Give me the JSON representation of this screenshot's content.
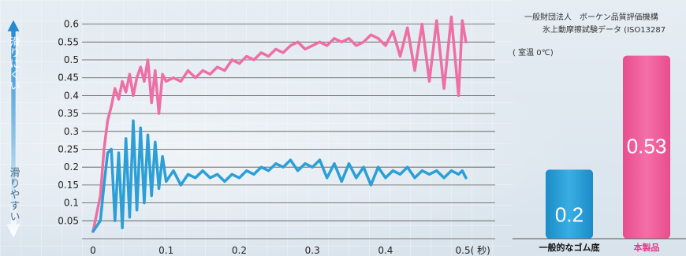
{
  "colors": {
    "pink": "#ee6fa6",
    "blue": "#2b9fd6",
    "arrow": "#2f8fd4",
    "bar_blue": "#2b9fd6",
    "bar_pink": "#ef5f9b",
    "cat_pink_text": "#e8388a"
  },
  "arrow": {
    "top_label": "滑りにくい",
    "bottom_label": "滑りやすい"
  },
  "note": {
    "line1": "一般財団法人　ボーケン品質評価機構",
    "line2": "氷上動摩擦試験データ (ISO13287",
    "condition": "( 室温 0℃)"
  },
  "chart_data": [
    {
      "type": "line",
      "x_unit_label": "0.5( 秒)",
      "x_ticks": [
        "0",
        "0.1",
        "0.2",
        "0.3",
        "0.4",
        "0.5( 秒)"
      ],
      "y_ticks": [
        "0.05",
        "0.1",
        "0.15",
        "0.2",
        "0.25",
        "0.3",
        "0.35",
        "0.4",
        "0.45",
        "0.5",
        "0.55",
        "0.6"
      ],
      "xlim": [
        0,
        0.55
      ],
      "ylim": [
        0,
        0.63
      ],
      "grid": "horizontal",
      "series": [
        {
          "color": "#ee6fa6",
          "x": [
            0,
            0.01,
            0.015,
            0.02,
            0.025,
            0.03,
            0.035,
            0.04,
            0.045,
            0.05,
            0.055,
            0.06,
            0.065,
            0.07,
            0.075,
            0.08,
            0.085,
            0.09,
            0.095,
            0.1,
            0.11,
            0.12,
            0.13,
            0.14,
            0.15,
            0.16,
            0.17,
            0.18,
            0.19,
            0.2,
            0.21,
            0.22,
            0.23,
            0.24,
            0.25,
            0.26,
            0.27,
            0.28,
            0.29,
            0.3,
            0.31,
            0.32,
            0.33,
            0.34,
            0.35,
            0.36,
            0.37,
            0.38,
            0.39,
            0.4,
            0.41,
            0.42,
            0.43,
            0.44,
            0.45,
            0.46,
            0.47,
            0.48,
            0.49,
            0.5,
            0.505,
            0.51
          ],
          "y": [
            0.02,
            0.12,
            0.25,
            0.33,
            0.37,
            0.42,
            0.39,
            0.44,
            0.41,
            0.46,
            0.4,
            0.45,
            0.48,
            0.44,
            0.5,
            0.38,
            0.47,
            0.35,
            0.46,
            0.44,
            0.45,
            0.44,
            0.47,
            0.45,
            0.47,
            0.46,
            0.48,
            0.47,
            0.5,
            0.49,
            0.51,
            0.5,
            0.52,
            0.51,
            0.53,
            0.52,
            0.54,
            0.55,
            0.53,
            0.54,
            0.55,
            0.54,
            0.56,
            0.55,
            0.56,
            0.54,
            0.55,
            0.57,
            0.56,
            0.54,
            0.58,
            0.51,
            0.59,
            0.47,
            0.6,
            0.44,
            0.61,
            0.42,
            0.62,
            0.4,
            0.61,
            0.55
          ]
        },
        {
          "color": "#2b9fd6",
          "x": [
            0,
            0.01,
            0.015,
            0.02,
            0.025,
            0.03,
            0.035,
            0.04,
            0.045,
            0.05,
            0.055,
            0.06,
            0.065,
            0.07,
            0.075,
            0.08,
            0.085,
            0.09,
            0.095,
            0.1,
            0.11,
            0.12,
            0.13,
            0.14,
            0.15,
            0.16,
            0.17,
            0.18,
            0.19,
            0.2,
            0.21,
            0.22,
            0.23,
            0.24,
            0.25,
            0.26,
            0.27,
            0.28,
            0.29,
            0.3,
            0.31,
            0.32,
            0.33,
            0.34,
            0.35,
            0.36,
            0.37,
            0.38,
            0.39,
            0.4,
            0.41,
            0.42,
            0.43,
            0.44,
            0.45,
            0.46,
            0.47,
            0.48,
            0.49,
            0.5,
            0.505,
            0.51
          ],
          "y": [
            0.02,
            0.05,
            0.15,
            0.24,
            0.25,
            0.05,
            0.24,
            0.03,
            0.28,
            0.06,
            0.33,
            0.08,
            0.31,
            0.1,
            0.29,
            0.12,
            0.27,
            0.14,
            0.23,
            0.16,
            0.19,
            0.15,
            0.18,
            0.17,
            0.19,
            0.17,
            0.18,
            0.16,
            0.18,
            0.17,
            0.19,
            0.18,
            0.2,
            0.19,
            0.21,
            0.2,
            0.22,
            0.19,
            0.21,
            0.2,
            0.22,
            0.17,
            0.21,
            0.16,
            0.21,
            0.17,
            0.2,
            0.15,
            0.2,
            0.17,
            0.19,
            0.18,
            0.2,
            0.17,
            0.19,
            0.18,
            0.19,
            0.17,
            0.19,
            0.18,
            0.19,
            0.17
          ]
        }
      ]
    },
    {
      "type": "bar",
      "categories": [
        "一般的なゴム底",
        "本製品"
      ],
      "values": [
        0.2,
        0.53
      ],
      "labels": [
        "0.2",
        "0.53"
      ],
      "ylim": [
        0,
        0.6
      ]
    }
  ]
}
